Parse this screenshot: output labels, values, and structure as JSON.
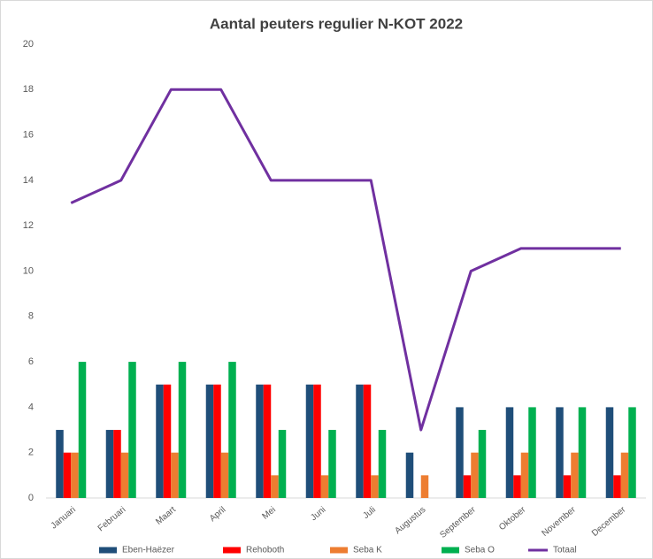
{
  "chart_data": {
    "type": "bar",
    "title": "Aantal peuters regulier N-KOT 2022",
    "categories": [
      "Januari",
      "Februari",
      "Maart",
      "April",
      "Mei",
      "Juni",
      "Juli",
      "Augustus",
      "September",
      "Oktober",
      "November",
      "December"
    ],
    "series": [
      {
        "name": "Eben-Haëzer",
        "color": "#1f4e79",
        "values": [
          3,
          3,
          5,
          5,
          5,
          5,
          5,
          2,
          4,
          4,
          4,
          4
        ]
      },
      {
        "name": "Rehoboth",
        "color": "#ff0000",
        "values": [
          2,
          3,
          5,
          5,
          5,
          5,
          5,
          0,
          1,
          1,
          1,
          1
        ]
      },
      {
        "name": "Seba K",
        "color": "#ed7d31",
        "values": [
          2,
          2,
          2,
          2,
          1,
          1,
          1,
          1,
          2,
          2,
          2,
          2
        ]
      },
      {
        "name": "Seba O",
        "color": "#00b050",
        "values": [
          6,
          6,
          6,
          6,
          3,
          3,
          3,
          0,
          3,
          4,
          4,
          4
        ]
      },
      {
        "name": "Totaal",
        "color": "#7030a0",
        "type": "line",
        "values": [
          13,
          14,
          18,
          18,
          14,
          14,
          14,
          3,
          10,
          11,
          11,
          11
        ]
      }
    ],
    "ylim": [
      0,
      20
    ],
    "yticks": [
      0,
      2,
      4,
      6,
      8,
      10,
      12,
      14,
      16,
      18,
      20
    ],
    "grid": false,
    "legend": "bottom"
  }
}
